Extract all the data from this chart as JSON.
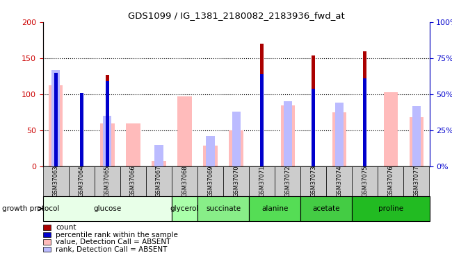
{
  "title": "GDS1099 / IG_1381_2180082_2183936_fwd_at",
  "samples": [
    "GSM37063",
    "GSM37064",
    "GSM37065",
    "GSM37066",
    "GSM37067",
    "GSM37068",
    "GSM37069",
    "GSM37070",
    "GSM37071",
    "GSM37072",
    "GSM37073",
    "GSM37074",
    "GSM37075",
    "GSM37076",
    "GSM37077"
  ],
  "count_values": [
    100,
    100,
    127,
    0,
    0,
    0,
    0,
    0,
    170,
    0,
    154,
    0,
    160,
    0,
    0
  ],
  "percentile_values": [
    65,
    51,
    59,
    0,
    0,
    0,
    0,
    0,
    64,
    0,
    54,
    0,
    61,
    0,
    0
  ],
  "absent_value_values": [
    112,
    0,
    60,
    60,
    8,
    97,
    29,
    50,
    0,
    85,
    0,
    75,
    0,
    103,
    68
  ],
  "absent_rank_values": [
    67,
    0,
    35,
    0,
    15,
    0,
    21,
    38,
    0,
    45,
    0,
    44,
    0,
    0,
    42
  ],
  "groups": [
    {
      "label": "glucose",
      "samples": [
        0,
        1,
        2,
        3,
        4
      ],
      "color": "#e0ffe0"
    },
    {
      "label": "glycerol",
      "samples": [
        5
      ],
      "color": "#aaffaa"
    },
    {
      "label": "succinate",
      "samples": [
        6,
        7
      ],
      "color": "#88ee88"
    },
    {
      "label": "alanine",
      "samples": [
        8,
        9
      ],
      "color": "#55dd55"
    },
    {
      "label": "acetate",
      "samples": [
        10,
        11
      ],
      "color": "#44cc44"
    },
    {
      "label": "proline",
      "samples": [
        12,
        13,
        14
      ],
      "color": "#33bb33"
    }
  ],
  "ylim_left": [
    0,
    200
  ],
  "ylim_right": [
    0,
    100
  ],
  "yticks_left": [
    0,
    50,
    100,
    150,
    200
  ],
  "yticks_right": [
    0,
    25,
    50,
    75,
    100
  ],
  "ytick_labels_right": [
    "0%",
    "25%",
    "50%",
    "75%",
    "100%"
  ],
  "bar_width": 0.55,
  "color_count": "#aa0000",
  "color_percentile": "#0000cc",
  "color_absent_value": "#ffbbbb",
  "color_absent_rank": "#bbbbff",
  "sample_row_color": "#cccccc",
  "ylabel_left_color": "#cc0000",
  "ylabel_right_color": "#0000cc",
  "dotted_lines": [
    50,
    100,
    150
  ],
  "legend_items": [
    {
      "label": "count",
      "color": "#aa0000"
    },
    {
      "label": "percentile rank within the sample",
      "color": "#0000cc"
    },
    {
      "label": "value, Detection Call = ABSENT",
      "color": "#ffbbbb"
    },
    {
      "label": "rank, Detection Call = ABSENT",
      "color": "#bbbbff"
    }
  ]
}
